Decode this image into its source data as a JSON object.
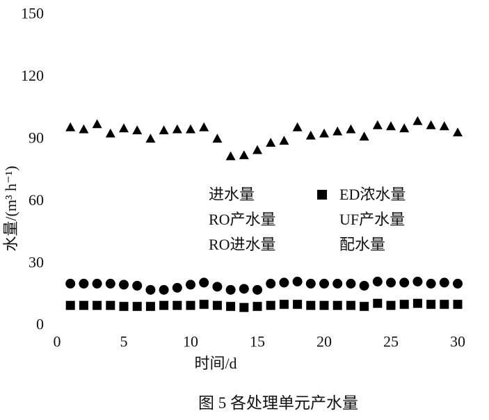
{
  "figure": {
    "caption": "图 5 各处理单元产水量"
  },
  "chart_data": {
    "type": "scatter",
    "title": "",
    "xlabel": "时间/d",
    "ylabel": "水量/(m³ h⁻¹)",
    "xlim": [
      0,
      31
    ],
    "ylim": [
      0,
      150
    ],
    "x_ticks": [
      0,
      5,
      10,
      15,
      20,
      25,
      30
    ],
    "y_ticks": [
      0,
      30,
      60,
      90,
      120,
      150
    ],
    "grid": false,
    "axis_lines": false,
    "marker_color": "#000000",
    "x": [
      1,
      2,
      3,
      4,
      5,
      6,
      7,
      8,
      9,
      10,
      11,
      12,
      13,
      14,
      15,
      16,
      17,
      18,
      19,
      20,
      21,
      22,
      23,
      24,
      25,
      26,
      27,
      28,
      29,
      30
    ],
    "series": [
      {
        "marker": "triangle",
        "legend_label": "",
        "values": [
          95,
          94,
          96.5,
          92,
          94.5,
          93.5,
          89.5,
          93.5,
          94,
          94,
          95,
          89.5,
          81,
          81.5,
          84,
          87.5,
          88.5,
          95,
          91,
          92,
          93,
          94,
          90.5,
          96,
          95.5,
          94.5,
          98,
          96,
          95.5,
          92.5
        ]
      },
      {
        "marker": "circle",
        "legend_label": "",
        "values": [
          19.5,
          19.5,
          19.5,
          19.5,
          19,
          18.5,
          16.5,
          16.5,
          17.5,
          19,
          20,
          18,
          16.5,
          17,
          16.5,
          19.5,
          20,
          20.5,
          19.5,
          19.5,
          19.5,
          19.5,
          18.5,
          20.5,
          20,
          20,
          20.5,
          19.5,
          20,
          19.5
        ]
      },
      {
        "marker": "square",
        "legend_label": "ED浓水量",
        "values": [
          9,
          9,
          9,
          9,
          8.5,
          8.5,
          8.5,
          9,
          9,
          9,
          9.5,
          9,
          8.5,
          8,
          8.5,
          9,
          9.5,
          9.5,
          9,
          9,
          9,
          9,
          8.5,
          10,
          9,
          9.5,
          10,
          9.5,
          9.5,
          9.5
        ]
      }
    ],
    "legend": {
      "position": "center",
      "columns": [
        {
          "items": [
            {
              "marker": "none",
              "label": "进水量"
            },
            {
              "marker": "none",
              "label": "RO产水量"
            },
            {
              "marker": "none",
              "label": "RO进水量"
            }
          ]
        },
        {
          "items": [
            {
              "marker": "square",
              "label": "ED浓水量"
            },
            {
              "marker": "none",
              "label": "UF产水量"
            },
            {
              "marker": "none",
              "label": "配水量"
            }
          ]
        }
      ]
    }
  }
}
